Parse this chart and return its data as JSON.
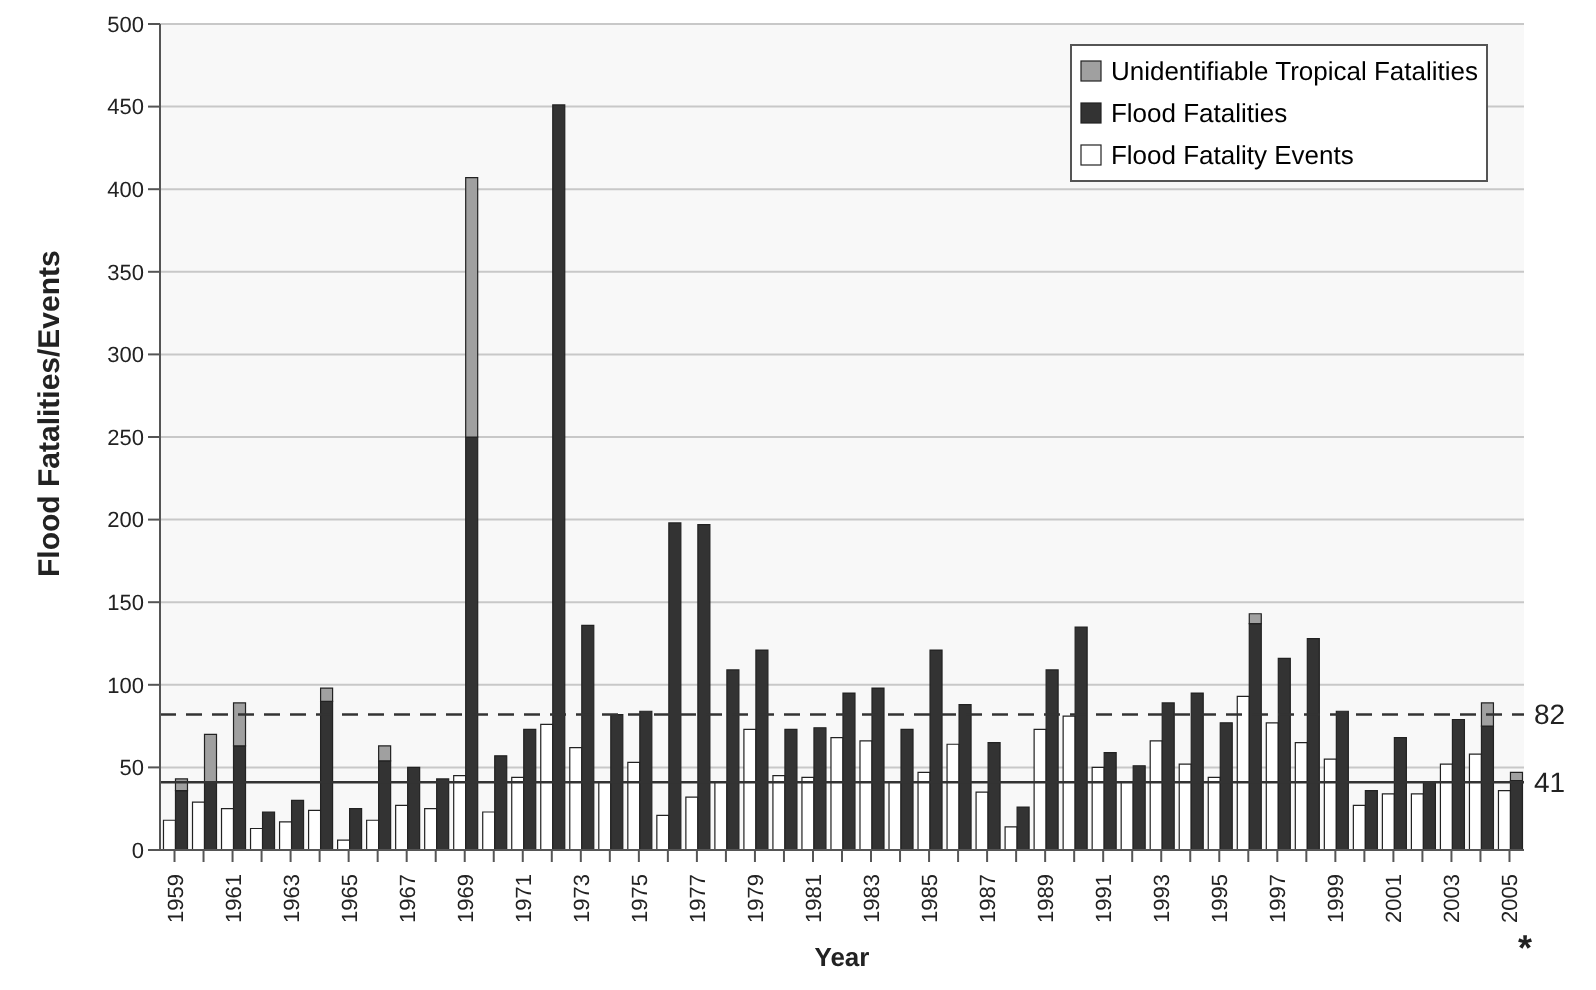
{
  "chart_data": {
    "type": "bar",
    "xlabel": "Year",
    "ylabel": "Flood Fatalities/Events",
    "categories": [
      "1959",
      null,
      "1961",
      null,
      "1963",
      null,
      "1965",
      null,
      "1967",
      null,
      "1969",
      null,
      "1971",
      null,
      "1973",
      null,
      "1975",
      null,
      "1977",
      null,
      "1979",
      null,
      "1981",
      null,
      "1983",
      null,
      "1985",
      null,
      "1987",
      null,
      "1989",
      null,
      "1991",
      null,
      "1993",
      null,
      "1995",
      null,
      "1997",
      null,
      "1999",
      null,
      "2001",
      null,
      "2003",
      null,
      "2005"
    ],
    "series": [
      {
        "name": "Flood Fatality Events",
        "color": "#ffffff",
        "values": [
          18,
          29,
          25,
          13,
          17,
          24,
          6,
          18,
          27,
          25,
          45,
          23,
          44,
          76,
          62,
          41,
          53,
          21,
          32,
          41,
          73,
          45,
          44,
          68,
          66,
          41,
          47,
          64,
          35,
          14,
          73,
          81,
          50,
          41,
          66,
          52,
          44,
          93,
          77,
          65,
          55,
          27,
          34,
          34,
          52,
          58,
          36
        ]
      },
      {
        "name": "Flood Fatalities",
        "color": "#333333",
        "values": [
          36,
          41,
          63,
          23,
          30,
          90,
          25,
          54,
          50,
          43,
          250,
          57,
          73,
          451,
          136,
          82,
          84,
          198,
          197,
          109,
          121,
          73,
          74,
          95,
          98,
          73,
          121,
          88,
          65,
          26,
          109,
          135,
          59,
          51,
          89,
          95,
          77,
          137,
          116,
          128,
          84,
          36,
          68,
          41,
          79,
          75,
          42
        ]
      },
      {
        "name": "Unidentifiable Tropical Fatalities",
        "color": "#a0a0a0",
        "base": [
          36,
          41,
          63,
          null,
          null,
          90,
          null,
          54,
          null,
          null,
          250,
          null,
          null,
          null,
          null,
          null,
          null,
          null,
          null,
          null,
          null,
          null,
          null,
          null,
          null,
          null,
          null,
          null,
          null,
          null,
          null,
          null,
          null,
          null,
          null,
          null,
          null,
          137,
          null,
          null,
          null,
          null,
          null,
          null,
          null,
          75,
          42
        ],
        "values": [
          7,
          29,
          26,
          null,
          null,
          8,
          null,
          9,
          null,
          null,
          157,
          null,
          null,
          null,
          null,
          null,
          null,
          null,
          null,
          null,
          null,
          null,
          null,
          null,
          null,
          null,
          null,
          null,
          null,
          null,
          null,
          null,
          null,
          null,
          null,
          null,
          null,
          6,
          null,
          null,
          null,
          null,
          null,
          null,
          null,
          14,
          5
        ]
      }
    ],
    "ylim": [
      0,
      500
    ],
    "yticks": [
      0,
      50,
      100,
      150,
      200,
      250,
      300,
      350,
      400,
      450,
      500
    ],
    "grid": "y",
    "legend": "top right",
    "ref_lines": [
      {
        "axis": "y",
        "value": 82,
        "label": "82",
        "line_style": "dashed",
        "color": "#333333"
      },
      {
        "axis": "y",
        "value": 41,
        "label": "41",
        "line_style": "solid",
        "color": "#333333"
      }
    ],
    "annotations": [
      "*"
    ]
  }
}
